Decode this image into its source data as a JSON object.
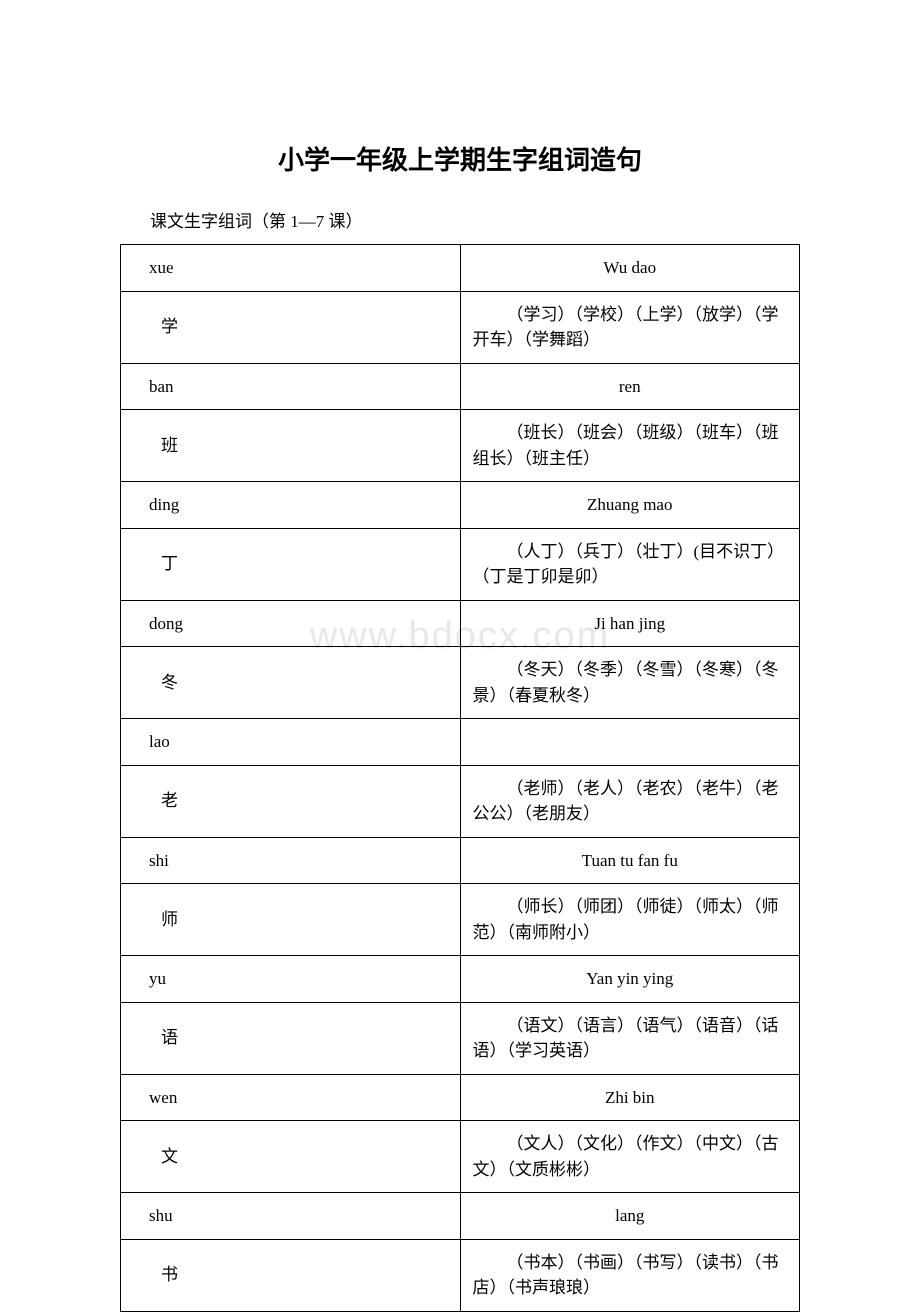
{
  "title": "小学一年级上学期生字组词造句",
  "intro": "课文生字组词（第 1—7 课）",
  "watermark": "www.bdocx.com",
  "rows": [
    {
      "pinyinLeft": "xue",
      "pinyinRight": "Wu dao",
      "char": "学",
      "words": "（学习）（学校）（上学）（放学）（学开车）（学舞蹈）"
    },
    {
      "pinyinLeft": "ban",
      "pinyinRight": "ren",
      "char": "班",
      "words": "（班长）（班会）（班级）（班车）（班组长）（班主任）"
    },
    {
      "pinyinLeft": "ding",
      "pinyinRight": "Zhuang mao",
      "char": "丁",
      "words": "（人丁）（兵丁）（壮丁）(目不识丁）（丁是丁卯是卯）"
    },
    {
      "pinyinLeft": "dong",
      "pinyinRight": "Ji han jing",
      "char": "冬",
      "words": "（冬天）（冬季）（冬雪）（冬寒）（冬景）（春夏秋冬）"
    },
    {
      "pinyinLeft": "lao",
      "pinyinRight": "",
      "char": "老",
      "words": "（老师）（老人）（老农）（老牛）（老公公）（老朋友）"
    },
    {
      "pinyinLeft": "shi",
      "pinyinRight": "Tuan tu fan fu",
      "char": "师",
      "words": "（师长）（师团）（师徒）（师太）（师范）（南师附小）"
    },
    {
      "pinyinLeft": "yu",
      "pinyinRight": "Yan yin ying",
      "char": "语",
      "words": "（语文）（语言）（语气）（语音）（话语）（学习英语）"
    },
    {
      "pinyinLeft": "wen",
      "pinyinRight": "Zhi bin",
      "char": "文",
      "words": "（文人）（文化）（作文）（中文）（古文）（文质彬彬）"
    },
    {
      "pinyinLeft": "shu",
      "pinyinRight": "lang",
      "char": "书",
      "words": "（书本）（书画）（书写）（读书）（书店）（书声琅琅）"
    }
  ],
  "colors": {
    "text": "#000000",
    "border": "#000000",
    "background": "#ffffff",
    "watermark": "#e8e8e8"
  }
}
